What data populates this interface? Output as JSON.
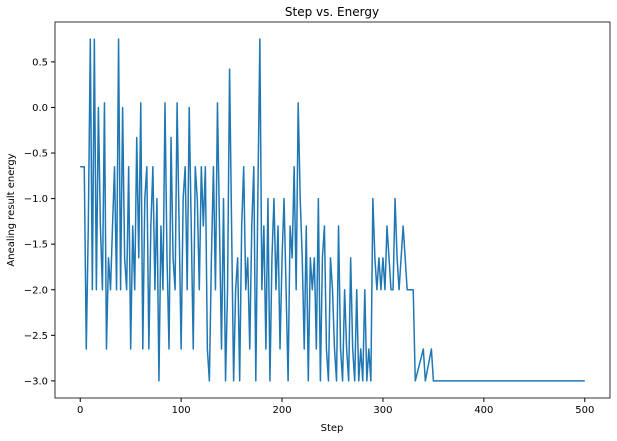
{
  "chart_data": {
    "type": "line",
    "title": "Step vs. Energy",
    "x_label": "Step",
    "y_label": "Anealing result energy",
    "x": [
      0,
      2,
      4,
      6,
      8,
      10,
      12,
      14,
      16,
      18,
      20,
      22,
      24,
      26,
      28,
      30,
      32,
      34,
      36,
      38,
      40,
      42,
      44,
      46,
      48,
      50,
      52,
      54,
      56,
      58,
      60,
      62,
      64,
      66,
      68,
      70,
      72,
      74,
      76,
      78,
      80,
      82,
      84,
      86,
      88,
      90,
      92,
      94,
      96,
      98,
      100,
      102,
      104,
      106,
      108,
      110,
      112,
      114,
      116,
      118,
      120,
      122,
      124,
      126,
      128,
      130,
      132,
      134,
      136,
      138,
      140,
      142,
      144,
      146,
      148,
      150,
      152,
      154,
      156,
      158,
      160,
      162,
      164,
      166,
      168,
      170,
      172,
      174,
      176,
      178,
      180,
      182,
      184,
      186,
      188,
      190,
      192,
      194,
      196,
      198,
      200,
      202,
      204,
      206,
      208,
      210,
      212,
      214,
      216,
      218,
      220,
      222,
      224,
      226,
      228,
      230,
      232,
      234,
      236,
      238,
      240,
      242,
      244,
      246,
      248,
      250,
      252,
      254,
      256,
      258,
      260,
      262,
      264,
      266,
      268,
      270,
      272,
      274,
      276,
      278,
      280,
      282,
      284,
      286,
      288,
      290,
      292,
      294,
      296,
      298,
      300,
      302,
      304,
      306,
      308,
      310,
      312,
      314,
      316,
      318,
      320,
      324,
      330,
      332,
      340,
      342,
      348,
      350,
      500
    ],
    "series": [
      {
        "name": "energy",
        "color": "#1f77b4",
        "values": [
          -0.65,
          -0.65,
          -0.65,
          -2.65,
          -1.3,
          0.75,
          -2,
          0.75,
          -2,
          0,
          -1.3,
          -2,
          0.05,
          -2.65,
          -1.65,
          -2,
          -1.3,
          -0.65,
          -2,
          0.75,
          -2,
          0,
          -1.65,
          -2,
          -0.65,
          -2.65,
          -1.3,
          -2,
          -0.33,
          -1.65,
          0.05,
          -2.65,
          -1,
          -0.65,
          -2.65,
          -1.3,
          -0.65,
          -2,
          -1,
          -3,
          -1.3,
          -2,
          0.05,
          -1.65,
          -2.65,
          -0.33,
          -1.65,
          -2,
          0.05,
          -1.3,
          -2.65,
          -1,
          -0.65,
          -2,
          0,
          -1.3,
          -2.65,
          -0.65,
          -1,
          -2,
          -0.65,
          -1.3,
          -0.65,
          -2.65,
          -3,
          -1.65,
          -0.65,
          -2,
          0.05,
          -1.3,
          -2.65,
          -1,
          -3,
          -2,
          0.42,
          -1.3,
          -3,
          -2,
          -1.65,
          -3,
          -1.3,
          -0.65,
          -2,
          -1.65,
          -2.65,
          -1.3,
          -0.65,
          -3,
          -1,
          0.75,
          -2,
          -1.3,
          -2.65,
          -1,
          -3,
          -1.65,
          -1,
          -2,
          -1.3,
          -2.65,
          -1.65,
          -1,
          -2,
          -3,
          -1.3,
          -1.65,
          -0.65,
          -2,
          0.05,
          -1,
          -1.65,
          -2.65,
          -1.3,
          -3,
          -1.65,
          -2,
          -1.65,
          -2.65,
          -1,
          -3,
          -1.65,
          -1.3,
          -2.65,
          -3,
          -1.65,
          -2,
          -2.65,
          -3,
          -1.3,
          -2.65,
          -3,
          -2,
          -2.65,
          -3,
          -1.65,
          -2.65,
          -3,
          -2,
          -3,
          -2.65,
          -3,
          -2,
          -3,
          -2.65,
          -3,
          -1,
          -1.65,
          -2,
          -1.65,
          -2,
          -1.65,
          -2,
          -1.3,
          -1.65,
          -2,
          -2,
          -1,
          -1.65,
          -2,
          -1.65,
          -1.3,
          -2,
          -2,
          -3,
          -2.65,
          -3,
          -2.65,
          -3,
          -3
        ]
      }
    ],
    "xlim": [
      -25,
      525
    ],
    "ylim": [
      -3.1875,
      0.9375
    ],
    "xticks": [
      0,
      100,
      200,
      300,
      400,
      500
    ],
    "yticks": [
      0.5,
      {
        "value": 0,
        "label": "0.0"
      },
      {
        "value": -0.5,
        "label": "−0.5"
      },
      {
        "value": -1,
        "label": "−1.0"
      },
      {
        "value": -1.5,
        "label": "−1.5"
      },
      {
        "value": -2,
        "label": "−2.0"
      },
      {
        "value": -2.5,
        "label": "−2.5"
      },
      {
        "value": -3,
        "label": "−3.0"
      }
    ]
  }
}
